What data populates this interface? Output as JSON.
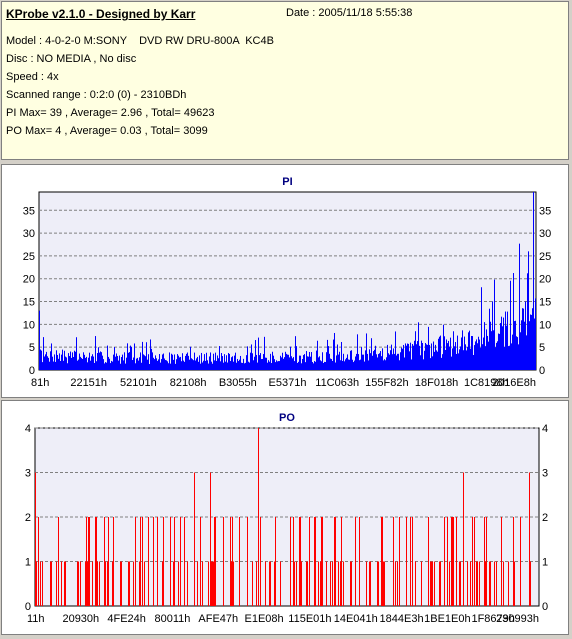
{
  "info": {
    "app_title": "KProbe v2.1.0 - Designed by Karr",
    "date": "Date : 2005/11/18 5:55:38",
    "lines": [
      "Model : 4-0-2-0 M:SONY    DVD RW DRU-800A  KC4B",
      "Disc : NO MEDIA , No disc",
      "Speed : 4x",
      "Scanned range : 0:2:0 (0) - 2310BDh",
      "PI Max= 39 , Average= 2.96 , Total= 49623",
      "PO Max= 4 , Average= 0.03 , Total= 3099"
    ]
  },
  "colors": {
    "info_bg": "#ffffe1",
    "plot_bg": "#eeeef8",
    "title": "#000080",
    "pi_series": "#0000ff",
    "po_series": "#ff0000",
    "grid": "#808080"
  },
  "chart_data": [
    {
      "type": "bar",
      "title": "PI",
      "ylim": [
        0,
        39
      ],
      "yticks": [
        0,
        5,
        10,
        15,
        20,
        25,
        30,
        35
      ],
      "xtick_labels": [
        "81h",
        "22151h",
        "52101h",
        "82108h",
        "B3055h",
        "E5371h",
        "11C063h",
        "155F82h",
        "18F018h",
        "1C8198h",
        "2016E8h"
      ],
      "grid": true,
      "grid_style": "dashed horizontal",
      "series_color": "#0000ff",
      "baseline": 2.96,
      "profile": [
        [
          0,
          3.5
        ],
        [
          0.05,
          3.3
        ],
        [
          0.1,
          3.1
        ],
        [
          0.2,
          2.9
        ],
        [
          0.3,
          2.9
        ],
        [
          0.4,
          2.9
        ],
        [
          0.5,
          3.0
        ],
        [
          0.6,
          3.3
        ],
        [
          0.68,
          4.0
        ],
        [
          0.75,
          4.8
        ],
        [
          0.8,
          5.6
        ],
        [
          0.85,
          6.6
        ],
        [
          0.9,
          8.0
        ],
        [
          0.94,
          9.8
        ],
        [
          0.97,
          12.0
        ],
        [
          1.0,
          14.0
        ]
      ],
      "max_peak": 39,
      "notable_peaks": [
        {
          "at": 0.0,
          "value": 13
        },
        {
          "at": 0.985,
          "value": 26
        },
        {
          "at": 0.995,
          "value": 39
        }
      ]
    },
    {
      "type": "bar",
      "title": "PO",
      "ylim": [
        0,
        4
      ],
      "yticks": [
        0,
        1,
        2,
        3,
        4
      ],
      "xtick_labels": [
        "11h",
        "20930h",
        "4FE24h",
        "80011h",
        "AFE47h",
        "E1E08h",
        "115E01h",
        "14E041h",
        "1844E3h",
        "1BE1E0h",
        "1F8679h",
        "230993h"
      ],
      "grid": true,
      "grid_style": "dashed horizontal",
      "series_color": "#ff0000",
      "max_peak": 4,
      "notable_peaks": [
        {
          "at": 0.0,
          "value": 3
        },
        {
          "at": 0.317,
          "value": 3
        },
        {
          "at": 0.348,
          "value": 3
        },
        {
          "at": 0.443,
          "value": 4
        },
        {
          "at": 0.851,
          "value": 3
        },
        {
          "at": 0.982,
          "value": 3
        }
      ]
    }
  ]
}
